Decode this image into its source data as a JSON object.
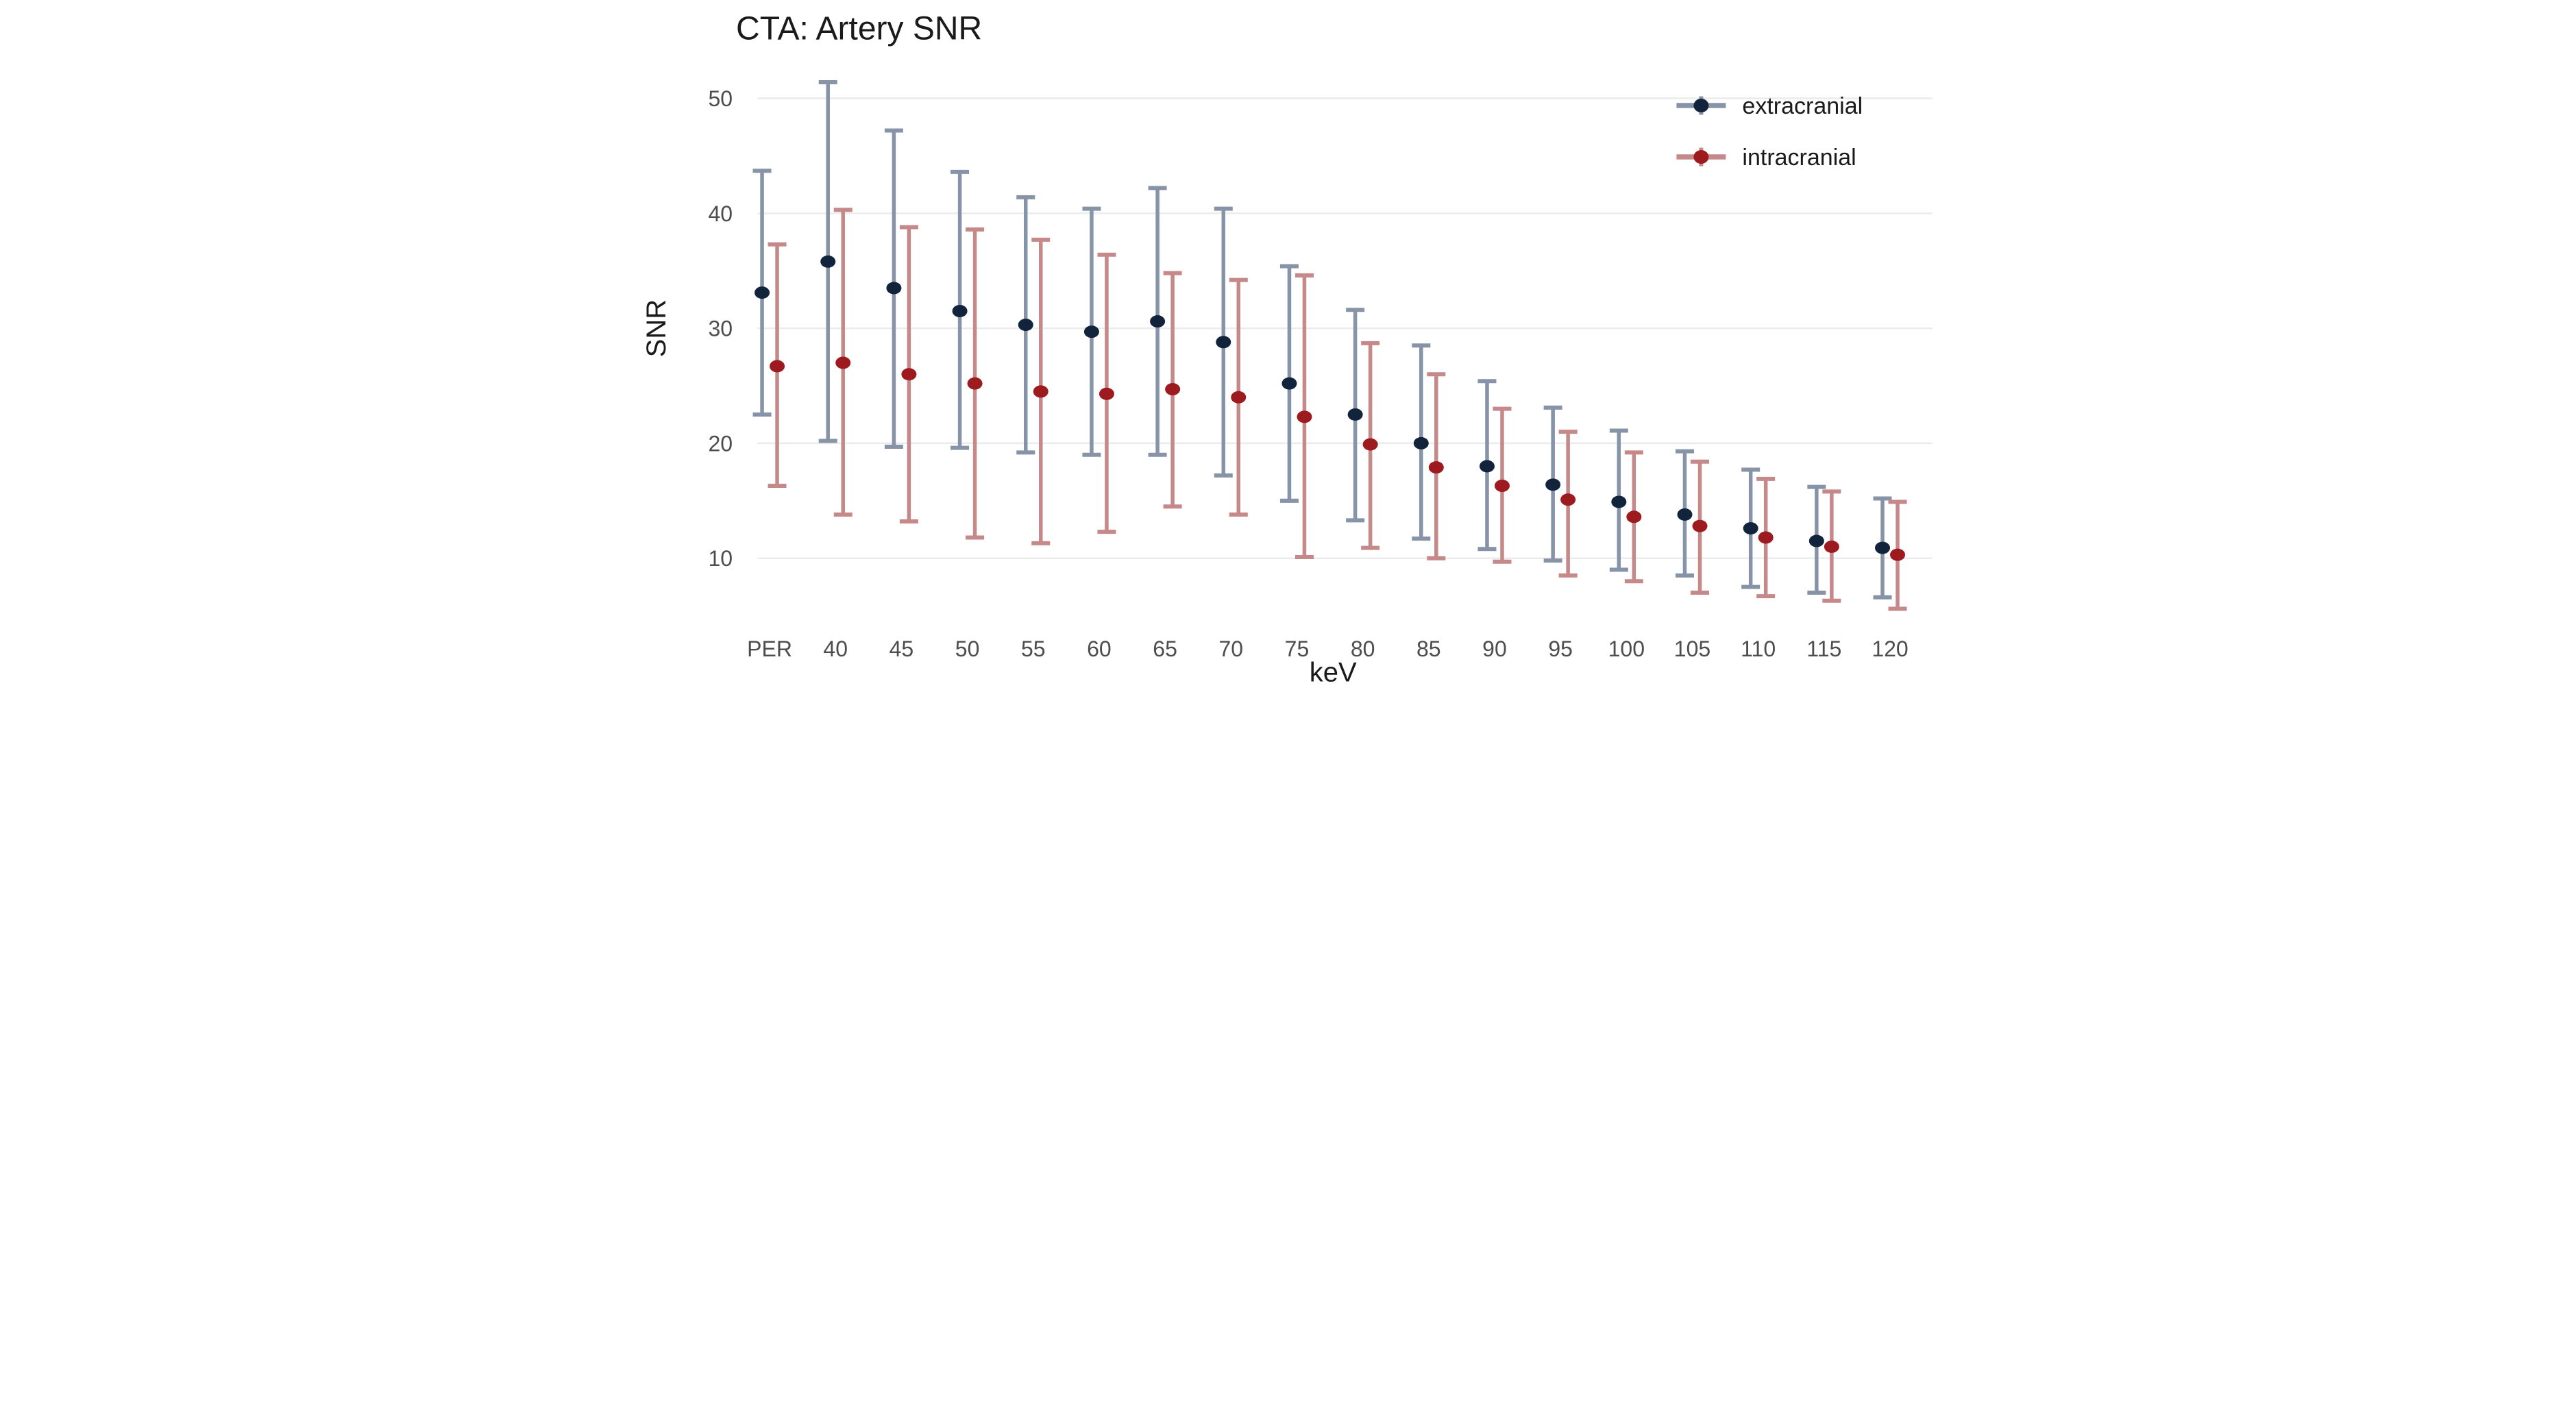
{
  "title": "CTA: Artery SNR",
  "colors": {
    "background": "#ffffff",
    "gridline": "#ececec",
    "title_text": "#1a1a1a",
    "axis_label_text": "#1a1a1a",
    "tick_label_text": "#4d4d4d"
  },
  "legend": {
    "position": "top-right-inside",
    "items": [
      {
        "label": "extracranial",
        "dot_color": "#12243c",
        "line_color": "#8793a6"
      },
      {
        "label": "intracranial",
        "dot_color": "#9d1b1f",
        "line_color": "#c6898a"
      }
    ]
  },
  "chart_data": {
    "type": "scatter",
    "mark": "pointrange (mean dot with error-bar whiskers)",
    "title": "CTA: Artery SNR",
    "xlabel": "keV",
    "ylabel": "SNR",
    "grid": "horizontal-only",
    "legend_position": "top-right inside plot",
    "yticks": [
      10,
      20,
      30,
      40,
      50
    ],
    "ylim": [
      4.5,
      53.5
    ],
    "categories": [
      "PER",
      "40",
      "45",
      "50",
      "55",
      "60",
      "65",
      "70",
      "75",
      "80",
      "85",
      "90",
      "95",
      "100",
      "105",
      "110",
      "115",
      "120"
    ],
    "series": [
      {
        "name": "extracranial",
        "color": "#12243c",
        "whisker_color": "#8793a6",
        "mean": [
          33.1,
          35.8,
          33.5,
          31.5,
          30.3,
          29.7,
          30.6,
          28.8,
          25.2,
          22.5,
          20.0,
          18.0,
          16.4,
          14.9,
          13.8,
          12.6,
          11.5,
          10.9
        ],
        "lower": [
          22.5,
          20.2,
          19.7,
          19.6,
          19.2,
          19.0,
          19.0,
          17.2,
          15.0,
          13.3,
          11.7,
          10.8,
          9.8,
          9.0,
          8.5,
          7.5,
          7.0,
          6.6
        ],
        "upper": [
          43.7,
          51.4,
          47.2,
          43.6,
          41.4,
          40.4,
          42.2,
          40.4,
          35.4,
          31.6,
          28.5,
          25.4,
          23.1,
          21.1,
          19.3,
          17.7,
          16.2,
          15.2
        ]
      },
      {
        "name": "intracranial",
        "color": "#9d1b1f",
        "whisker_color": "#c6898a",
        "mean": [
          26.7,
          27.0,
          26.0,
          25.2,
          24.5,
          24.3,
          24.7,
          24.0,
          22.3,
          19.9,
          17.9,
          16.3,
          15.1,
          13.6,
          12.8,
          11.8,
          11.0,
          10.3
        ],
        "lower": [
          16.3,
          13.8,
          13.2,
          11.8,
          11.3,
          12.3,
          14.5,
          13.8,
          10.1,
          10.9,
          10.0,
          9.7,
          8.5,
          8.0,
          7.0,
          6.7,
          6.3,
          5.6
        ],
        "upper": [
          37.3,
          40.3,
          38.8,
          38.6,
          37.7,
          36.4,
          34.8,
          34.2,
          34.6,
          28.7,
          26.0,
          23.0,
          21.0,
          19.2,
          18.4,
          16.9,
          15.8,
          14.9
        ]
      }
    ]
  }
}
